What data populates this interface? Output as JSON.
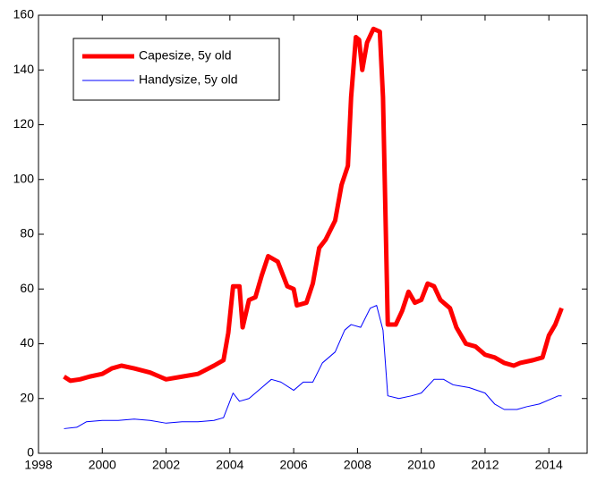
{
  "chart_data": {
    "type": "line",
    "xlim": [
      1998,
      2015.2
    ],
    "xticks": [
      1998,
      2000,
      2002,
      2004,
      2006,
      2008,
      2010,
      2012,
      2014
    ],
    "ylim": [
      0,
      160
    ],
    "yticks": [
      0,
      20,
      40,
      60,
      80,
      100,
      120,
      140,
      160
    ],
    "legend": "upper-left",
    "series": [
      {
        "name": "Capesize, 5y old",
        "color": "#ff0000",
        "linewidth": 5,
        "x": [
          1998.8,
          1999,
          1999.3,
          1999.6,
          2000,
          2000.3,
          2000.6,
          2001,
          2001.5,
          2001.8,
          2002,
          2002.5,
          2003,
          2003.5,
          2003.8,
          2003.95,
          2004.1,
          2004.3,
          2004.4,
          2004.6,
          2004.8,
          2005,
          2005.2,
          2005.5,
          2005.8,
          2006,
          2006.1,
          2006.4,
          2006.6,
          2006.8,
          2007,
          2007.3,
          2007.5,
          2007.7,
          2007.8,
          2007.95,
          2008.05,
          2008.15,
          2008.3,
          2008.5,
          2008.7,
          2008.8,
          2008.95,
          2009.2,
          2009.4,
          2009.6,
          2009.8,
          2010,
          2010.2,
          2010.4,
          2010.6,
          2010.9,
          2011.1,
          2011.4,
          2011.7,
          2012,
          2012.3,
          2012.6,
          2012.9,
          2013.1,
          2013.5,
          2013.8,
          2014,
          2014.2,
          2014.4
        ],
        "values": [
          28,
          26.5,
          27,
          28,
          29,
          31,
          32,
          31,
          29.5,
          28,
          27,
          28,
          29,
          32,
          34,
          44,
          61,
          61,
          46,
          56,
          57,
          65,
          72,
          70,
          61,
          60,
          54,
          55,
          62,
          75,
          78,
          85,
          98,
          105,
          130,
          152,
          151,
          140,
          150,
          155,
          154,
          130,
          47,
          47,
          52,
          59,
          55,
          56,
          62,
          61,
          56,
          53,
          46,
          40,
          39,
          36,
          35,
          33,
          32,
          33,
          34,
          35,
          43,
          47,
          53
        ]
      },
      {
        "name": "Handysize, 5y old",
        "color": "#0000ff",
        "linewidth": 1,
        "x": [
          1998.8,
          1999.2,
          1999.5,
          2000,
          2000.5,
          2001,
          2001.5,
          2002,
          2002.5,
          2003,
          2003.5,
          2003.8,
          2004,
          2004.1,
          2004.3,
          2004.6,
          2005,
          2005.3,
          2005.6,
          2006,
          2006.3,
          2006.6,
          2006.9,
          2007.3,
          2007.6,
          2007.8,
          2008.1,
          2008.4,
          2008.6,
          2008.8,
          2008.95,
          2009.3,
          2009.7,
          2010,
          2010.4,
          2010.7,
          2011,
          2011.5,
          2012,
          2012.3,
          2012.6,
          2013,
          2013.3,
          2013.7,
          2014,
          2014.3,
          2014.4
        ],
        "values": [
          9,
          9.5,
          11.5,
          12,
          12,
          12.5,
          12,
          11,
          11.5,
          11.5,
          12,
          13,
          19,
          22,
          19,
          20,
          24,
          27,
          26,
          23,
          26,
          26,
          33,
          37,
          45,
          47,
          46,
          53,
          54,
          45,
          21,
          20,
          21,
          22,
          27,
          27,
          25,
          24,
          22,
          18,
          16,
          16,
          17,
          18,
          19.5,
          21,
          21
        ]
      }
    ]
  }
}
